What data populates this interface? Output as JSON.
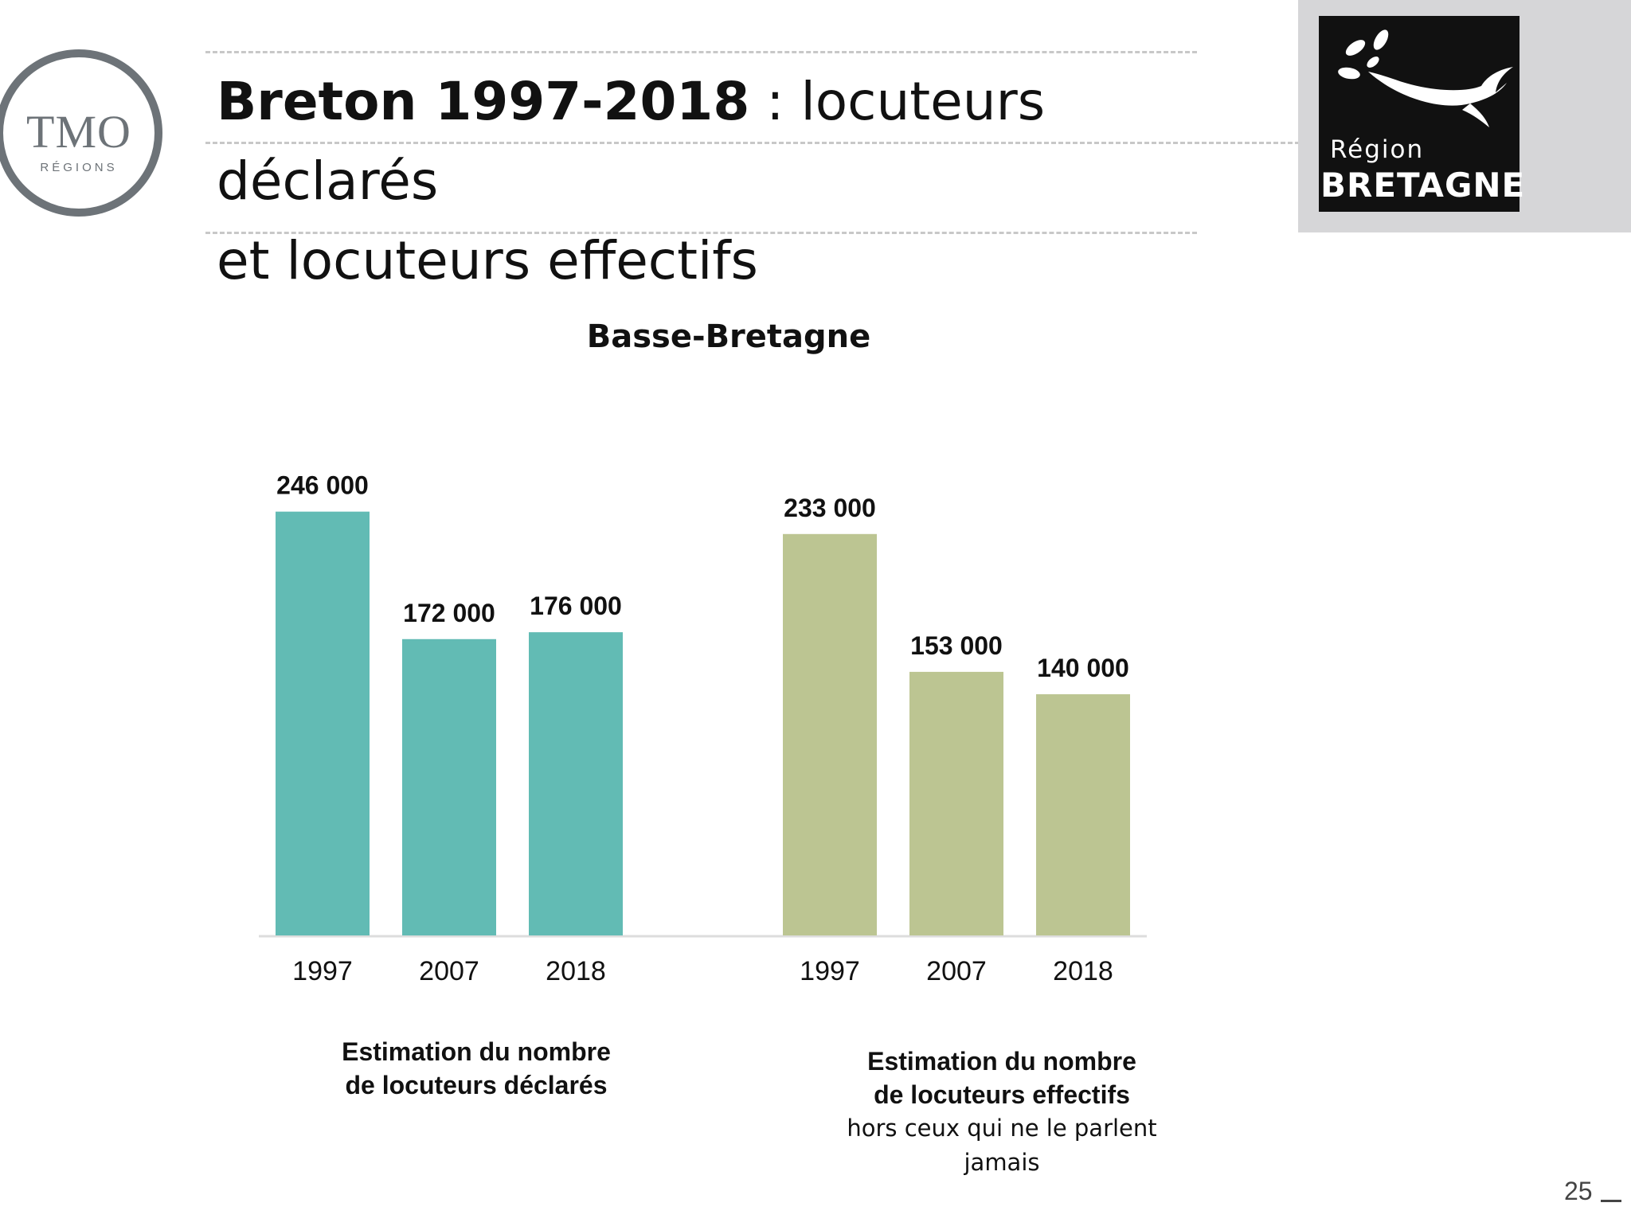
{
  "header": {
    "title_bold": "Breton 1997-2018",
    "title_rest": " : locuteurs déclarés",
    "title_line2": "et locuteurs effectifs"
  },
  "logos": {
    "tmo_main": "TMO",
    "tmo_sub": "RÉGIONS",
    "region_line1": "Région",
    "region_line2": "BRETAGNE"
  },
  "chart_data": {
    "type": "bar",
    "title": "Basse-Bretagne",
    "categories": [
      "1997",
      "2007",
      "2018"
    ],
    "series": [
      {
        "label_lines": [
          "Estimation du nombre",
          "de locuteurs déclarés"
        ],
        "values": [
          246000,
          172000,
          176000
        ],
        "value_labels": [
          "246 000",
          "172 000",
          "176 000"
        ],
        "color": "#62bbb4"
      },
      {
        "label_lines": [
          "Estimation du nombre",
          "de locuteurs effectifs"
        ],
        "note_lines": [
          "hors ceux qui ne le parlent",
          "jamais"
        ],
        "values": [
          233000,
          153000,
          140000
        ],
        "value_labels": [
          "233 000",
          "153 000",
          "140 000"
        ],
        "color": "#bcc592"
      }
    ],
    "ylim": [
      0,
      250000
    ],
    "grid": false,
    "axis_color": "#dddddd"
  },
  "footer": {
    "page_number": "25"
  }
}
